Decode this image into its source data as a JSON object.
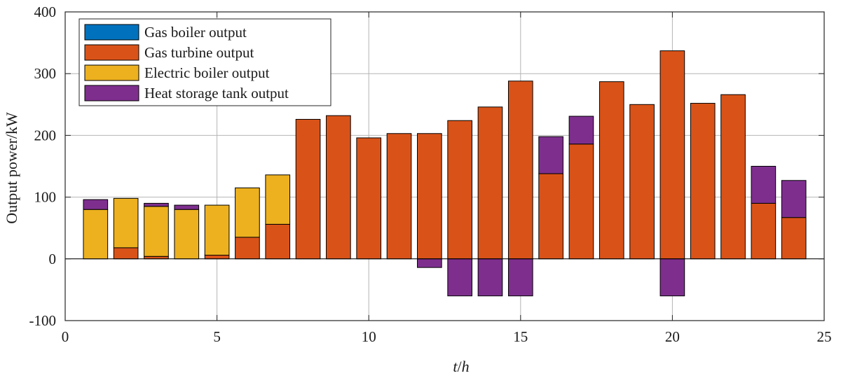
{
  "chart_data": {
    "type": "bar",
    "stacked": true,
    "xlabel_italic_parts": [
      "t",
      "h"
    ],
    "xlabel": "t/h",
    "ylabel": "Output power/kW",
    "xlim": [
      0,
      25
    ],
    "ylim": [
      -100,
      400
    ],
    "xticks": [
      0,
      5,
      10,
      15,
      20,
      25
    ],
    "yticks": [
      -100,
      0,
      100,
      200,
      300,
      400
    ],
    "grid": true,
    "legend_position": "top-left",
    "x": [
      1,
      2,
      3,
      4,
      5,
      6,
      7,
      8,
      9,
      10,
      11,
      12,
      13,
      14,
      15,
      16,
      17,
      18,
      19,
      20,
      21,
      22,
      23,
      24
    ],
    "series": [
      {
        "name": "Gas boiler output",
        "color": "#0072BD",
        "values": [
          0,
          0,
          0,
          0,
          0,
          0,
          0,
          0,
          0,
          0,
          0,
          0,
          0,
          0,
          0,
          0,
          0,
          0,
          0,
          0,
          0,
          0,
          0,
          0
        ]
      },
      {
        "name": "Gas turbine output",
        "color": "#D95319",
        "values": [
          0,
          18,
          4,
          0,
          6,
          35,
          56,
          226,
          232,
          196,
          203,
          203,
          224,
          246,
          288,
          138,
          186,
          287,
          250,
          337,
          252,
          266,
          90,
          67
        ]
      },
      {
        "name": "Electric boiler output",
        "color": "#EDB120",
        "values": [
          80,
          80,
          81,
          80,
          81,
          80,
          80,
          0,
          0,
          0,
          0,
          0,
          0,
          0,
          0,
          0,
          0,
          0,
          0,
          0,
          0,
          0,
          0,
          0
        ]
      },
      {
        "name": "Heat storage tank output",
        "color": "#7E2F8E",
        "values": [
          16,
          0,
          5,
          7,
          0,
          0,
          0,
          0,
          0,
          0,
          0,
          -14,
          -60,
          -60,
          -60,
          60,
          45,
          0,
          0,
          -60,
          0,
          0,
          60,
          60
        ]
      }
    ]
  }
}
